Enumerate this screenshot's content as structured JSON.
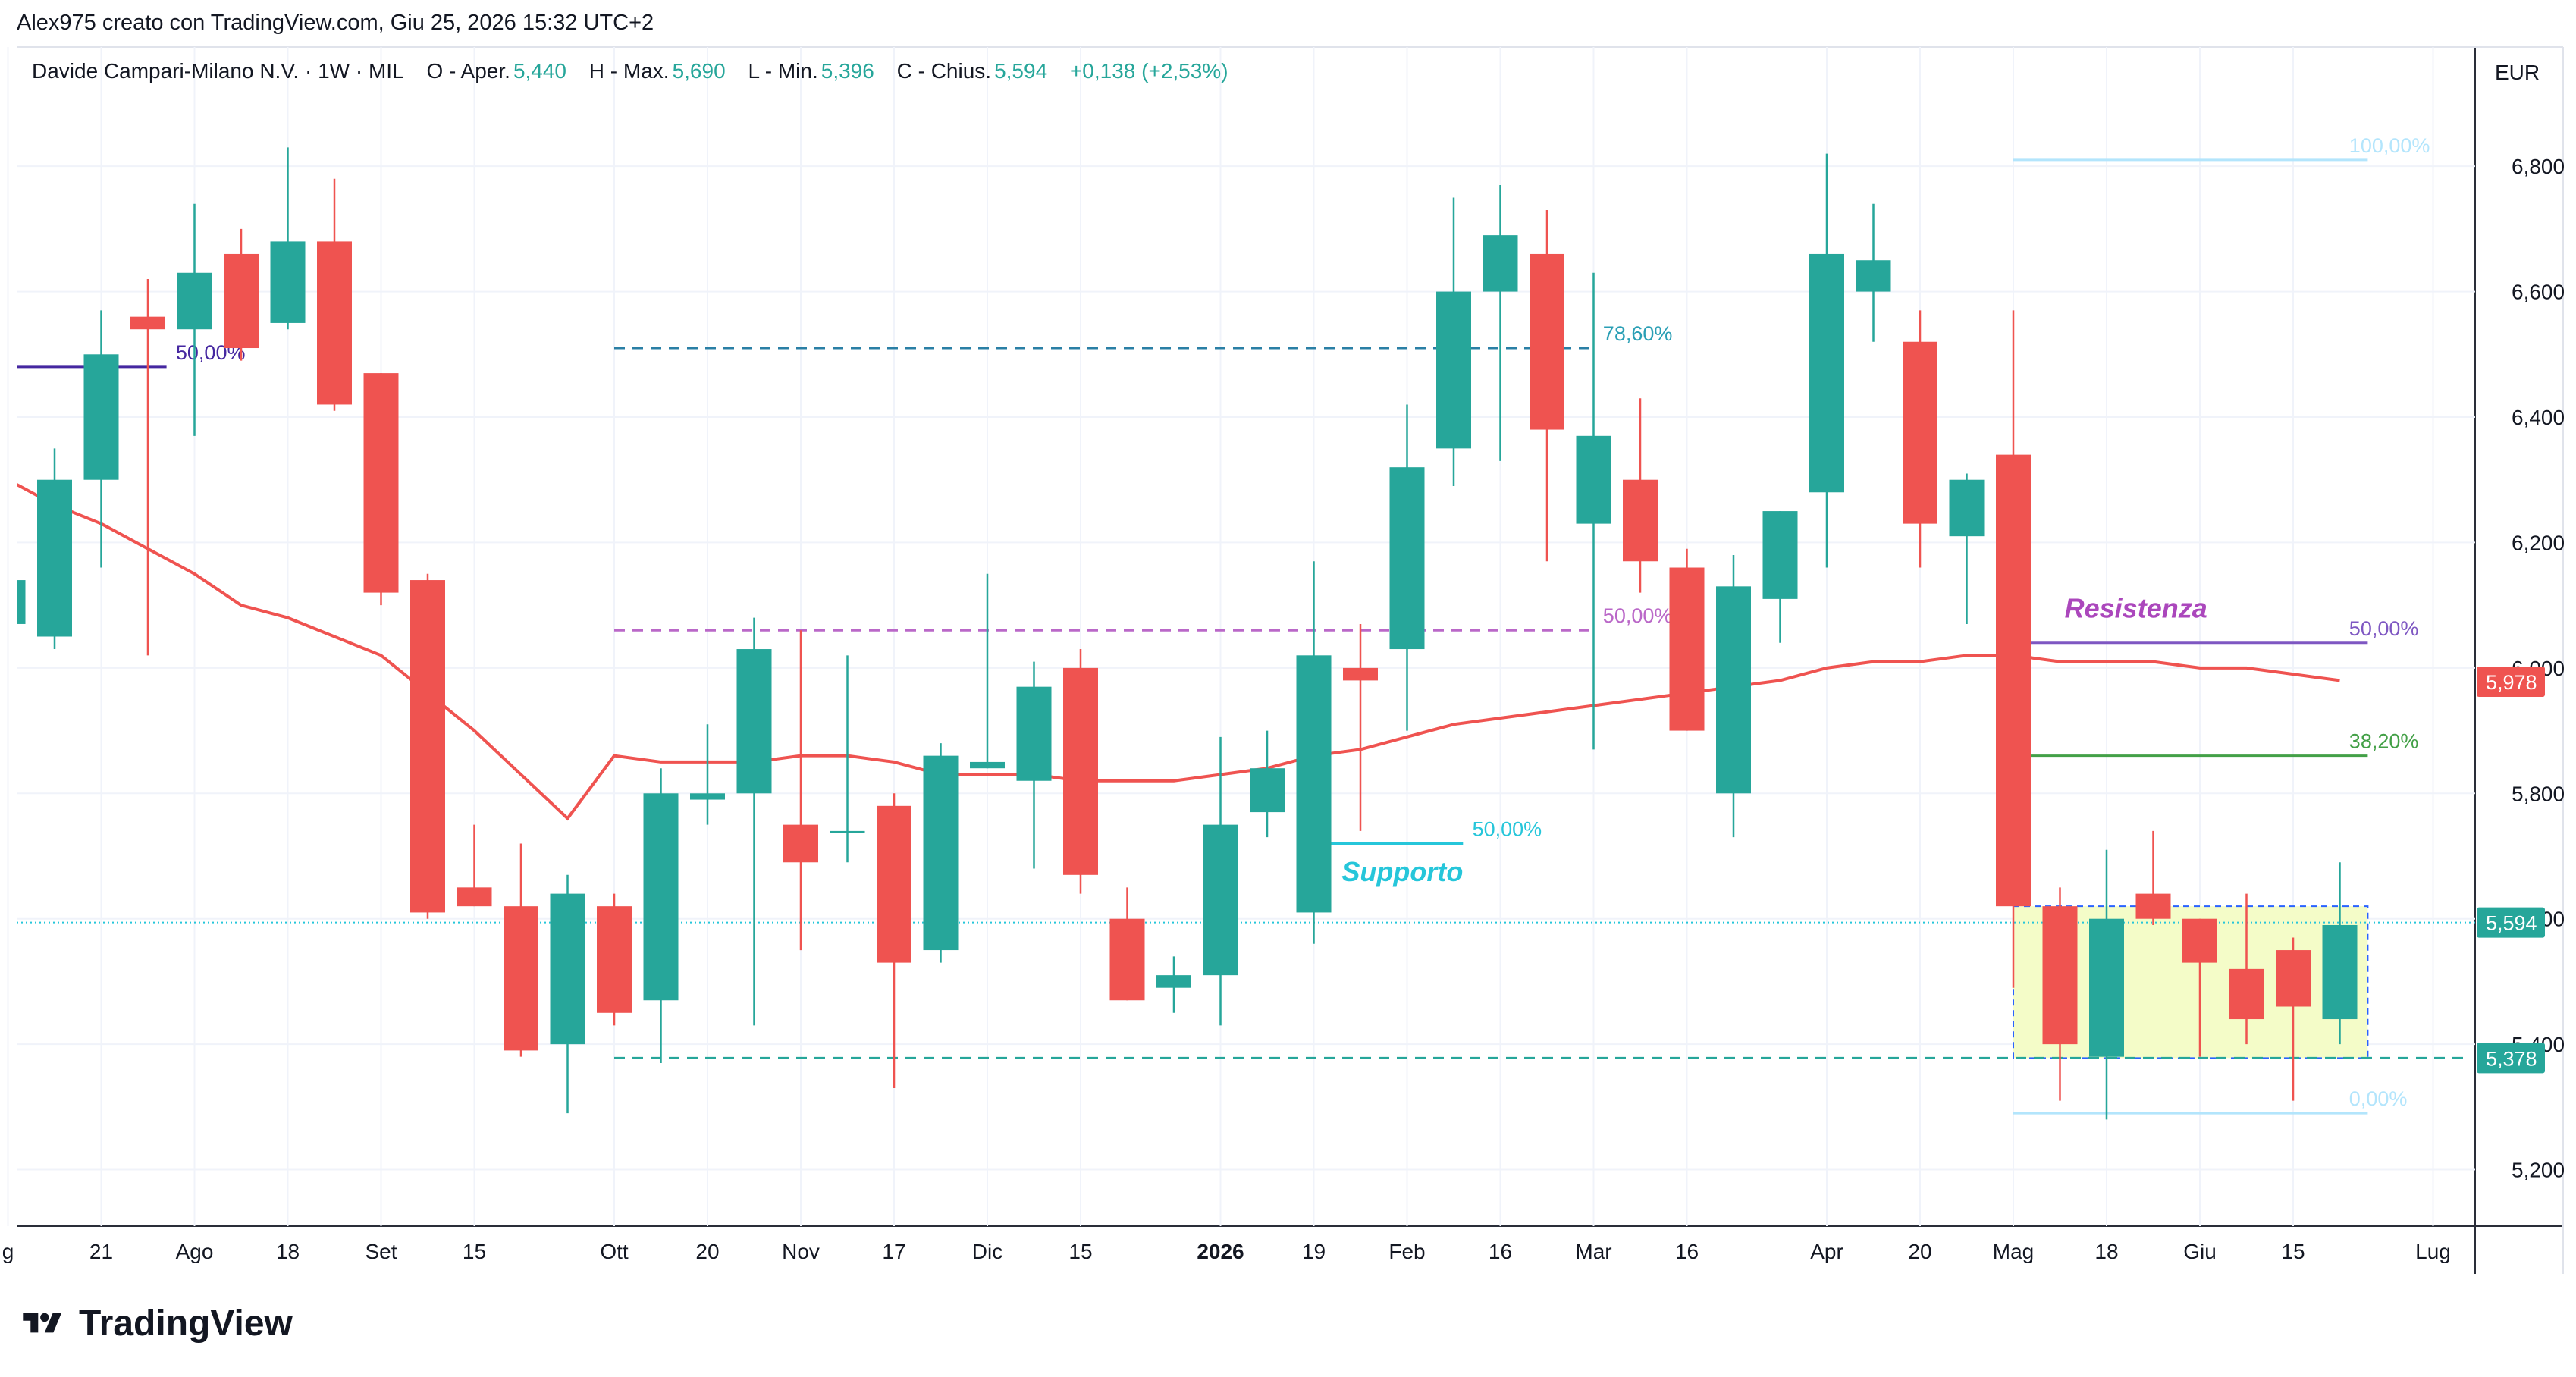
{
  "header": {
    "created_by": "Alex975 creato con TradingView.com, Giu 25, 2026 15:32 UTC+2"
  },
  "legend": {
    "symbol": "Davide Campari-Milano N.V. · 1W · MIL",
    "open_label": "O - Aper.",
    "open": "5,440",
    "high_label": "H - Max.",
    "high": "5,690",
    "low_label": "L - Min.",
    "low": "5,396",
    "close_label": "C - Chius.",
    "close": "5,594",
    "change": "+0,138 (+2,53%)"
  },
  "currency": "EUR",
  "brand": "TradingView",
  "chart_data": {
    "type": "candlestick",
    "colors": {
      "up": "#26a69a",
      "down": "#ef5350",
      "ma": "#ef5350"
    },
    "ylim": [
      5.11,
      6.99
    ],
    "y_ticks": [
      {
        "v": 5.2,
        "t": "5,200"
      },
      {
        "v": 5.4,
        "t": "5,400"
      },
      {
        "v": 5.6,
        "t": "5,600"
      },
      {
        "v": 5.8,
        "t": "5,800"
      },
      {
        "v": 6.0,
        "t": "6,000"
      },
      {
        "v": 6.2,
        "t": "6,200"
      },
      {
        "v": 6.4,
        "t": "6,400"
      },
      {
        "v": 6.6,
        "t": "6,600"
      },
      {
        "v": 6.8,
        "t": "6,800"
      }
    ],
    "x_ticks": [
      {
        "i": -1,
        "t": "g"
      },
      {
        "i": 1,
        "t": "21"
      },
      {
        "i": 3,
        "t": "Ago"
      },
      {
        "i": 5,
        "t": "18"
      },
      {
        "i": 7,
        "t": "Set"
      },
      {
        "i": 9,
        "t": "15"
      },
      {
        "i": 12,
        "t": "Ott"
      },
      {
        "i": 14,
        "t": "20"
      },
      {
        "i": 16,
        "t": "Nov"
      },
      {
        "i": 18,
        "t": "17"
      },
      {
        "i": 20,
        "t": "Dic"
      },
      {
        "i": 22,
        "t": "15"
      },
      {
        "i": 25,
        "t": "2026",
        "bold": true
      },
      {
        "i": 27,
        "t": "19"
      },
      {
        "i": 29,
        "t": "Feb"
      },
      {
        "i": 31,
        "t": "16"
      },
      {
        "i": 33,
        "t": "Mar"
      },
      {
        "i": 35,
        "t": "16"
      },
      {
        "i": 38,
        "t": "Apr"
      },
      {
        "i": 40,
        "t": "20"
      },
      {
        "i": 42,
        "t": "Mag"
      },
      {
        "i": 44,
        "t": "18"
      },
      {
        "i": 46,
        "t": "Giu"
      },
      {
        "i": 48,
        "t": "15"
      },
      {
        "i": 51,
        "t": "Lug"
      }
    ],
    "candles": [
      {
        "i": -1,
        "o": 6.07,
        "h": 6.15,
        "l": 6.03,
        "c": 6.14
      },
      {
        "i": 0,
        "o": 6.05,
        "h": 6.35,
        "l": 6.03,
        "c": 6.3
      },
      {
        "i": 1,
        "o": 6.3,
        "h": 6.57,
        "l": 6.16,
        "c": 6.5
      },
      {
        "i": 2,
        "o": 6.56,
        "h": 6.62,
        "l": 6.02,
        "c": 6.54
      },
      {
        "i": 3,
        "o": 6.54,
        "h": 6.74,
        "l": 6.37,
        "c": 6.63
      },
      {
        "i": 4,
        "o": 6.66,
        "h": 6.7,
        "l": 6.49,
        "c": 6.51
      },
      {
        "i": 5,
        "o": 6.55,
        "h": 6.83,
        "l": 6.54,
        "c": 6.68
      },
      {
        "i": 6,
        "o": 6.68,
        "h": 6.78,
        "l": 6.41,
        "c": 6.42
      },
      {
        "i": 7,
        "o": 6.47,
        "h": 6.47,
        "l": 6.1,
        "c": 6.12
      },
      {
        "i": 8,
        "o": 6.14,
        "h": 6.15,
        "l": 5.6,
        "c": 5.61
      },
      {
        "i": 9,
        "o": 5.65,
        "h": 5.75,
        "l": 5.62,
        "c": 5.62
      },
      {
        "i": 10,
        "o": 5.62,
        "h": 5.72,
        "l": 5.38,
        "c": 5.39
      },
      {
        "i": 11,
        "o": 5.4,
        "h": 5.67,
        "l": 5.29,
        "c": 5.64
      },
      {
        "i": 12,
        "o": 5.62,
        "h": 5.64,
        "l": 5.43,
        "c": 5.45
      },
      {
        "i": 13,
        "o": 5.47,
        "h": 5.84,
        "l": 5.37,
        "c": 5.8
      },
      {
        "i": 14,
        "o": 5.79,
        "h": 5.91,
        "l": 5.75,
        "c": 5.8
      },
      {
        "i": 15,
        "o": 5.8,
        "h": 6.08,
        "l": 5.43,
        "c": 6.03
      },
      {
        "i": 16,
        "o": 5.75,
        "h": 6.06,
        "l": 5.55,
        "c": 5.69
      },
      {
        "i": 17,
        "o": 5.74,
        "h": 6.02,
        "l": 5.69,
        "c": 5.74
      },
      {
        "i": 18,
        "o": 5.78,
        "h": 5.8,
        "l": 5.33,
        "c": 5.53
      },
      {
        "i": 19,
        "o": 5.55,
        "h": 5.88,
        "l": 5.53,
        "c": 5.86
      },
      {
        "i": 20,
        "o": 5.84,
        "h": 6.15,
        "l": 5.84,
        "c": 5.85
      },
      {
        "i": 21,
        "o": 5.82,
        "h": 6.01,
        "l": 5.68,
        "c": 5.97
      },
      {
        "i": 22,
        "o": 6.0,
        "h": 6.03,
        "l": 5.64,
        "c": 5.67
      },
      {
        "i": 23,
        "o": 5.6,
        "h": 5.65,
        "l": 5.47,
        "c": 5.47
      },
      {
        "i": 24,
        "o": 5.49,
        "h": 5.54,
        "l": 5.45,
        "c": 5.51
      },
      {
        "i": 25,
        "o": 5.51,
        "h": 5.89,
        "l": 5.43,
        "c": 5.75
      },
      {
        "i": 26,
        "o": 5.77,
        "h": 5.9,
        "l": 5.73,
        "c": 5.84
      },
      {
        "i": 27,
        "o": 5.61,
        "h": 6.17,
        "l": 5.56,
        "c": 6.02
      },
      {
        "i": 28,
        "o": 6.0,
        "h": 6.07,
        "l": 5.74,
        "c": 5.98
      },
      {
        "i": 29,
        "o": 6.03,
        "h": 6.42,
        "l": 5.9,
        "c": 6.32
      },
      {
        "i": 30,
        "o": 6.35,
        "h": 6.75,
        "l": 6.29,
        "c": 6.6
      },
      {
        "i": 31,
        "o": 6.6,
        "h": 6.77,
        "l": 6.33,
        "c": 6.69
      },
      {
        "i": 32,
        "o": 6.66,
        "h": 6.73,
        "l": 6.17,
        "c": 6.38
      },
      {
        "i": 33,
        "o": 6.23,
        "h": 6.63,
        "l": 5.87,
        "c": 6.37
      },
      {
        "i": 34,
        "o": 6.3,
        "h": 6.43,
        "l": 6.12,
        "c": 6.17
      },
      {
        "i": 35,
        "o": 6.16,
        "h": 6.19,
        "l": 5.9,
        "c": 5.9
      },
      {
        "i": 36,
        "o": 5.8,
        "h": 6.18,
        "l": 5.73,
        "c": 6.13
      },
      {
        "i": 37,
        "o": 6.11,
        "h": 6.25,
        "l": 6.04,
        "c": 6.25
      },
      {
        "i": 38,
        "o": 6.28,
        "h": 6.82,
        "l": 6.16,
        "c": 6.66
      },
      {
        "i": 39,
        "o": 6.6,
        "h": 6.74,
        "l": 6.52,
        "c": 6.65
      },
      {
        "i": 40,
        "o": 6.52,
        "h": 6.57,
        "l": 6.16,
        "c": 6.23
      },
      {
        "i": 41,
        "o": 6.21,
        "h": 6.31,
        "l": 6.07,
        "c": 6.3
      },
      {
        "i": 42,
        "o": 6.34,
        "h": 6.57,
        "l": 5.49,
        "c": 5.62
      },
      {
        "i": 43,
        "o": 5.62,
        "h": 5.65,
        "l": 5.31,
        "c": 5.4
      },
      {
        "i": 44,
        "o": 5.38,
        "h": 5.71,
        "l": 5.28,
        "c": 5.6
      },
      {
        "i": 45,
        "o": 5.64,
        "h": 5.74,
        "l": 5.59,
        "c": 5.6
      },
      {
        "i": 46,
        "o": 5.6,
        "h": 5.6,
        "l": 5.38,
        "c": 5.53
      },
      {
        "i": 47,
        "o": 5.52,
        "h": 5.64,
        "l": 5.4,
        "c": 5.44
      },
      {
        "i": 48,
        "o": 5.55,
        "h": 5.57,
        "l": 5.31,
        "c": 5.46
      },
      {
        "i": 49,
        "o": 5.44,
        "h": 5.69,
        "l": 5.4,
        "c": 5.59
      }
    ],
    "moving_average": [
      {
        "i": -1,
        "v": 6.3
      },
      {
        "i": 0,
        "v": 6.26
      },
      {
        "i": 1,
        "v": 6.23
      },
      {
        "i": 2,
        "v": 6.19
      },
      {
        "i": 3,
        "v": 6.15
      },
      {
        "i": 4,
        "v": 6.1
      },
      {
        "i": 5,
        "v": 6.08
      },
      {
        "i": 6,
        "v": 6.05
      },
      {
        "i": 7,
        "v": 6.02
      },
      {
        "i": 8,
        "v": 5.96
      },
      {
        "i": 9,
        "v": 5.9
      },
      {
        "i": 10,
        "v": 5.83
      },
      {
        "i": 11,
        "v": 5.76
      },
      {
        "i": 12,
        "v": 5.86
      },
      {
        "i": 13,
        "v": 5.85
      },
      {
        "i": 14,
        "v": 5.85
      },
      {
        "i": 15,
        "v": 5.85
      },
      {
        "i": 16,
        "v": 5.86
      },
      {
        "i": 17,
        "v": 5.86
      },
      {
        "i": 18,
        "v": 5.85
      },
      {
        "i": 19,
        "v": 5.83
      },
      {
        "i": 20,
        "v": 5.83
      },
      {
        "i": 21,
        "v": 5.83
      },
      {
        "i": 22,
        "v": 5.82
      },
      {
        "i": 23,
        "v": 5.82
      },
      {
        "i": 24,
        "v": 5.82
      },
      {
        "i": 25,
        "v": 5.83
      },
      {
        "i": 26,
        "v": 5.84
      },
      {
        "i": 27,
        "v": 5.86
      },
      {
        "i": 28,
        "v": 5.87
      },
      {
        "i": 29,
        "v": 5.89
      },
      {
        "i": 30,
        "v": 5.91
      },
      {
        "i": 31,
        "v": 5.92
      },
      {
        "i": 32,
        "v": 5.93
      },
      {
        "i": 33,
        "v": 5.94
      },
      {
        "i": 34,
        "v": 5.95
      },
      {
        "i": 35,
        "v": 5.96
      },
      {
        "i": 36,
        "v": 5.97
      },
      {
        "i": 37,
        "v": 5.98
      },
      {
        "i": 38,
        "v": 6.0
      },
      {
        "i": 39,
        "v": 6.01
      },
      {
        "i": 40,
        "v": 6.01
      },
      {
        "i": 41,
        "v": 6.02
      },
      {
        "i": 42,
        "v": 6.02
      },
      {
        "i": 43,
        "v": 6.01
      },
      {
        "i": 44,
        "v": 6.01
      },
      {
        "i": 45,
        "v": 6.01
      },
      {
        "i": 46,
        "v": 6.0
      },
      {
        "i": 47,
        "v": 6.0
      },
      {
        "i": 48,
        "v": 5.99
      },
      {
        "i": 49,
        "v": 5.98
      }
    ],
    "horizontal_lines": [
      {
        "name": "purple-fib-line",
        "i1": -1,
        "i2": 2.4,
        "v": 6.48,
        "color": "#4527a0",
        "dash": false,
        "label": "50,00%",
        "label_color": "#4527a0",
        "li": 2.6
      },
      {
        "name": "fib-786-line",
        "i1": 12,
        "i2": 33,
        "v": 6.51,
        "color": "#2a7fa5",
        "dash": true,
        "label": "78,60%",
        "label_color": "#2a9fb5",
        "li": 33.2
      },
      {
        "name": "fib-500-magenta-line",
        "i1": 12,
        "i2": 33,
        "v": 6.06,
        "color": "#ba68c8",
        "dash": true,
        "label": "50,00%",
        "label_color": "#ba68c8",
        "li": 33.2
      },
      {
        "name": "support-line",
        "i1": 27,
        "i2": 30.2,
        "v": 5.72,
        "color": "#26c6da",
        "dash": false,
        "label": "50,00%",
        "label_color": "#26c6da",
        "li": 30.4
      },
      {
        "name": "resistance-line",
        "i1": 42.3,
        "i2": 49.6,
        "v": 6.04,
        "color": "#7e57c2",
        "dash": false,
        "label": "50,00%",
        "label_color": "#7e57c2",
        "li": 49.2
      },
      {
        "name": "fib-382-line",
        "i1": 42.3,
        "i2": 49.6,
        "v": 5.86,
        "color": "#43a047",
        "dash": false,
        "label": "38,20%",
        "label_color": "#43a047",
        "li": 49.2
      },
      {
        "name": "fib-100-line",
        "i1": 42,
        "i2": 49.6,
        "v": 6.81,
        "color": "#b3e5fc",
        "dash": false,
        "label": "100,00%",
        "label_color": "#b3e5fc",
        "li": 49.2
      },
      {
        "name": "fib-000-line",
        "i1": 42,
        "i2": 49.6,
        "v": 5.29,
        "color": "#b3e5fc",
        "dash": false,
        "label": "0,00%",
        "label_color": "#b3e5fc",
        "li": 49.2
      },
      {
        "name": "support-level-line",
        "i1": 12,
        "i2": 51.8,
        "v": 5.378,
        "color": "#26a69a",
        "dash": true,
        "label": "",
        "label_color": "#26a69a",
        "li": 0
      }
    ],
    "annotations": [
      {
        "text": "Supporto",
        "i": 27.6,
        "v": 5.66,
        "color": "#26c6da"
      },
      {
        "text": "Resistenza",
        "i": 43.1,
        "v": 6.08,
        "color": "#ab47bc"
      }
    ],
    "range_box": {
      "i1": 42,
      "i2": 49.6,
      "v1": 5.378,
      "v2": 5.62,
      "fill": "#f4fcc8",
      "stroke": "#2962ff"
    },
    "current_price_line": {
      "v": 5.594,
      "color": "#26c6da"
    },
    "price_tags": [
      {
        "v": 5.978,
        "t": "5,978",
        "color": "#ef5350"
      },
      {
        "v": 5.594,
        "t": "5,594",
        "color": "#26a69a"
      },
      {
        "v": 5.378,
        "t": "5,378",
        "color": "#26a69a"
      }
    ]
  }
}
